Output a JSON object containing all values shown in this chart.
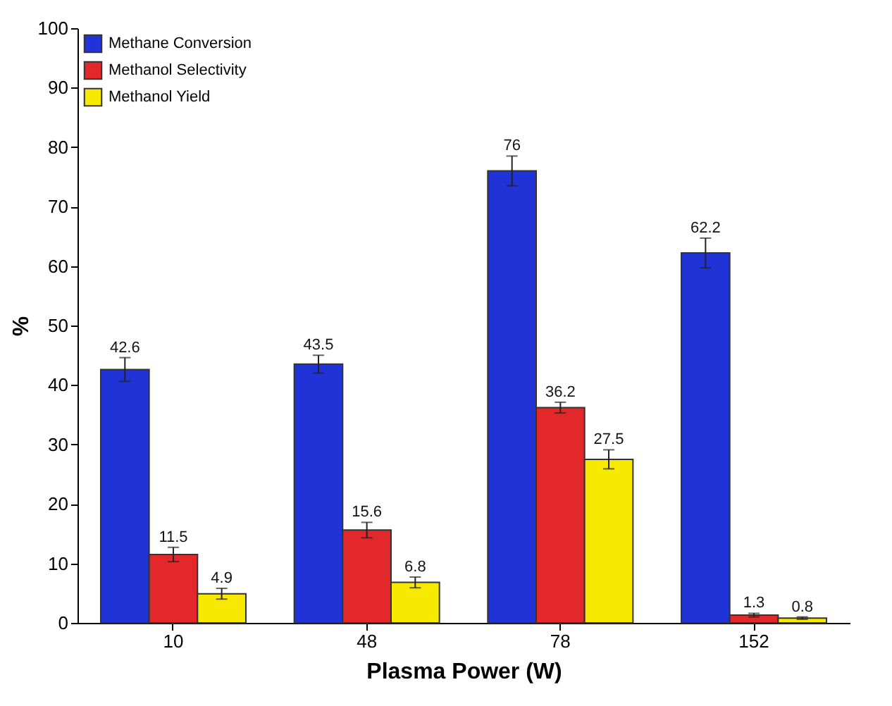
{
  "chart_data": {
    "type": "bar",
    "xlabel": "Plasma Power (W)",
    "ylabel": "%",
    "categories": [
      "10",
      "48",
      "78",
      "152"
    ],
    "series": [
      {
        "name": "Methane Conversion",
        "color": "#1f33d6",
        "values": [
          42.6,
          43.5,
          76,
          62.2
        ],
        "errors": [
          2,
          1.5,
          2.5,
          2.5
        ]
      },
      {
        "name": "Methanol Selectivity",
        "color": "#e3282b",
        "values": [
          11.5,
          15.6,
          36.2,
          1.3
        ],
        "errors": [
          1.2,
          1.3,
          0.9,
          0.3
        ]
      },
      {
        "name": "Methanol Yield",
        "color": "#f7ea00",
        "values": [
          4.9,
          6.8,
          27.5,
          0.8
        ],
        "errors": [
          0.9,
          0.9,
          1.6,
          0.2
        ]
      }
    ],
    "ylim": [
      0,
      100
    ],
    "yticks": [
      0,
      10,
      20,
      30,
      40,
      50,
      60,
      70,
      80,
      90,
      100
    ],
    "data_labels": true,
    "legend": "top left",
    "grid": false
  }
}
